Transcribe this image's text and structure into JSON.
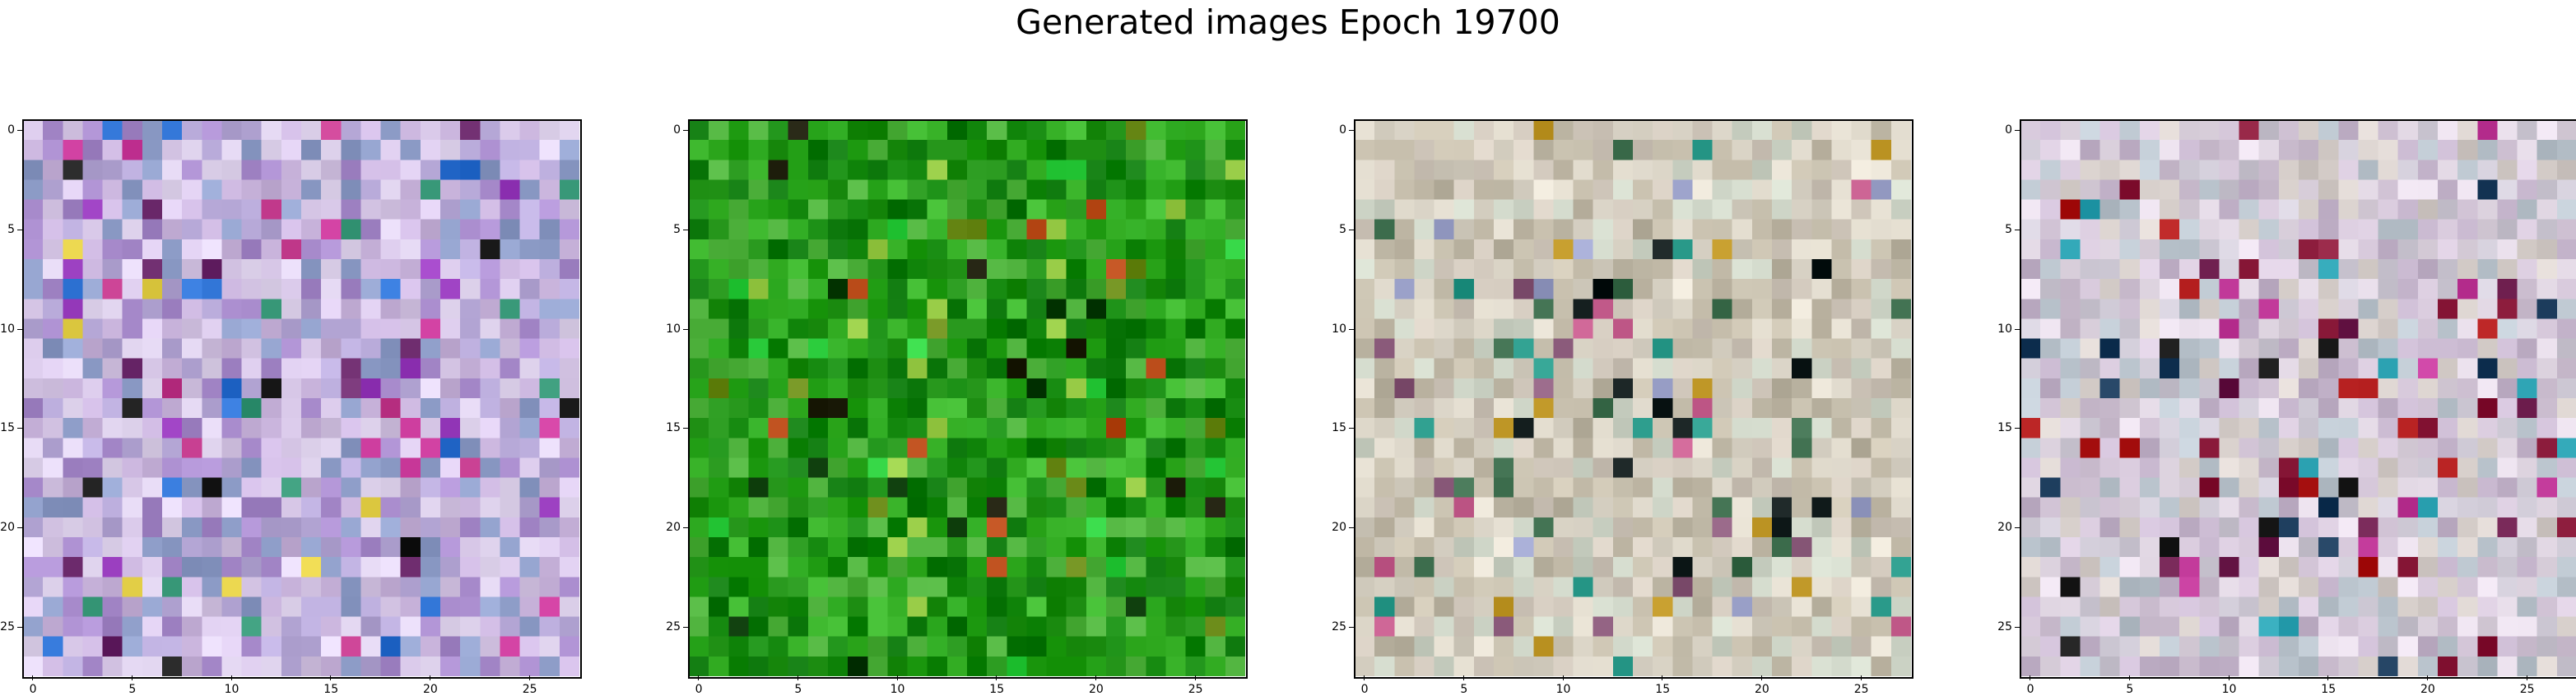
{
  "figure": {
    "title": "Generated images Epoch 19700"
  },
  "axes": {
    "x_ticks": [
      "0",
      "5",
      "10",
      "15",
      "20",
      "25"
    ],
    "y_ticks": [
      "0",
      "5",
      "10",
      "15",
      "20",
      "25"
    ],
    "tick_values": [
      0,
      5,
      10,
      15,
      20,
      25
    ]
  },
  "images": [
    {
      "name": "generated-image-1",
      "description_palette": [
        "#c9b4dc",
        "#d6c6e6",
        "#b7a9d8",
        "#e0d4ee",
        "#a98ccd",
        "#8f9ec9"
      ],
      "accents": [
        "#9b3fc0",
        "#cf3fa0",
        "#3a9a7a",
        "#2b6fd0",
        "#1c1c1c",
        "#e6d24a",
        "#6c2a6c",
        "#c23a8c"
      ]
    },
    {
      "name": "generated-image-2",
      "description_palette": [
        "#1f8f14",
        "#27a31a",
        "#168a10",
        "#3bb52b",
        "#0f7a0e",
        "#4caf3a"
      ],
      "accents": [
        "#0a3a08",
        "#1a1a08",
        "#b84a18",
        "#9bcf4a",
        "#2fd040",
        "#6a8a18"
      ]
    },
    {
      "name": "generated-image-3",
      "description_palette": [
        "#d8d2c4",
        "#c8c0ae",
        "#e2dccf",
        "#bfb8a6",
        "#d2c9bd",
        "#cfd6c8"
      ],
      "accents": [
        "#3a6a4a",
        "#c29a2a",
        "#8a5a7a",
        "#2a9a8a",
        "#101a1a",
        "#c25a8a",
        "#9aa0c8"
      ]
    },
    {
      "name": "generated-image-4",
      "description_palette": [
        "#d4c6d8",
        "#c8b8cf",
        "#e2d8e4",
        "#bcc6cf",
        "#cfcad6",
        "#d8d0cc"
      ],
      "accents": [
        "#8a1a3a",
        "#b01a1a",
        "#1a3a5a",
        "#2aa0b0",
        "#6a1a4a",
        "#1a1a1a",
        "#c23a9a"
      ]
    }
  ]
}
